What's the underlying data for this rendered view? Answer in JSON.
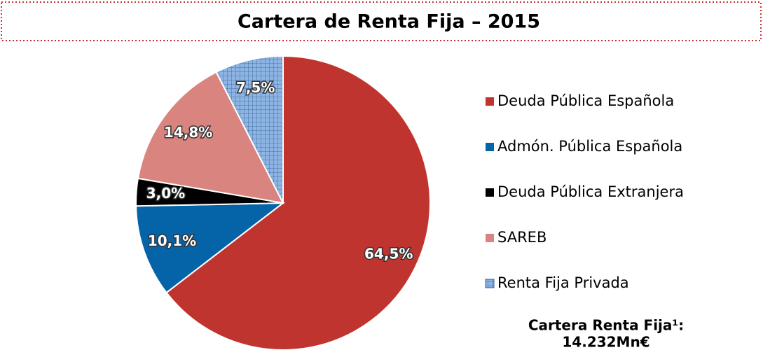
{
  "chart_data": {
    "type": "pie",
    "title": "Cartera de Renta Fija – 2015",
    "categories": [
      "Deuda Pública Española",
      "Admón. Pública Española",
      "Deuda Pública Extranjera",
      "SAREB",
      "Renta Fija Privada"
    ],
    "values": [
      64.5,
      10.1,
      3.0,
      14.8,
      7.5
    ],
    "value_labels": [
      "64,5%",
      "10,1%",
      "3,0%",
      "14,8%",
      "7,5%"
    ],
    "colors": [
      "#c0342f",
      "#0563a8",
      "#000000",
      "#d9847f",
      "#8db4e2"
    ],
    "hatched": [
      false,
      false,
      false,
      false,
      true
    ],
    "legend": "right",
    "annotations": [
      "Cartera Renta Fija¹:",
      "14.232Mn€"
    ]
  }
}
